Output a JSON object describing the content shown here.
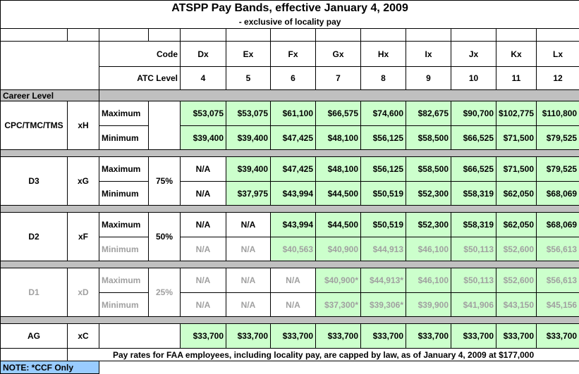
{
  "title": "ATSPP Pay Bands, effective January 4, 2009",
  "subtitle": "- exclusive of locality pay",
  "header": {
    "code_label": "Code",
    "codes": [
      "Dx",
      "Ex",
      "Fx",
      "Gx",
      "Hx",
      "Ix",
      "Jx",
      "Kx",
      "Lx"
    ],
    "level_label": "ATC Level",
    "levels": [
      4,
      5,
      6,
      7,
      8,
      9,
      10,
      11,
      12
    ]
  },
  "section_label": "Career Level",
  "groups": [
    {
      "career": "CPC/TMC/TMS",
      "code": "xH",
      "rows": [
        {
          "label": "Maximum",
          "values": [
            "$53,075",
            "$53,075",
            "$61,100",
            "$66,575",
            "$74,600",
            "$82,675",
            "$90,700",
            "$102,775",
            "$110,800"
          ]
        },
        {
          "label": "Minimum",
          "values": [
            "$39,400",
            "$39,400",
            "$47,425",
            "$48,100",
            "$56,125",
            "$58,500",
            "$66,525",
            "$71,500",
            "$79,525"
          ]
        }
      ]
    },
    {
      "career": "D3",
      "code": "xG",
      "percent": "75%",
      "rows": [
        {
          "label": "Maximum",
          "values": [
            "N/A",
            "$39,400",
            "$47,425",
            "$48,100",
            "$56,125",
            "$58,500",
            "$66,525",
            "$71,500",
            "$79,525"
          ]
        },
        {
          "label": "Minimum",
          "values": [
            "N/A",
            "$37,975",
            "$43,994",
            "$44,500",
            "$50,519",
            "$52,300",
            "$58,319",
            "$62,050",
            "$68,069"
          ]
        }
      ]
    },
    {
      "career": "D2",
      "code": "xF",
      "percent": "50%",
      "rows": [
        {
          "label": "Maximum",
          "values": [
            "N/A",
            "N/A",
            "$43,994",
            "$44,500",
            "$50,519",
            "$52,300",
            "$58,319",
            "$62,050",
            "$68,069"
          ]
        },
        {
          "label": "Minimum",
          "greyed": true,
          "values": [
            "N/A",
            "N/A",
            "$40,563",
            "$40,900",
            "$44,913",
            "$46,100",
            "$50,113",
            "$52,600",
            "$56,613"
          ]
        }
      ]
    },
    {
      "career": "D1",
      "code": "xD",
      "percent": "25%",
      "greyed": true,
      "rows": [
        {
          "label": "Maximum",
          "greyed": true,
          "values": [
            "N/A",
            "N/A",
            "N/A",
            "$40,900*",
            "$44,913*",
            "$46,100",
            "$50,113",
            "$52,600",
            "$56,613"
          ]
        },
        {
          "label": "Minimum",
          "greyed": true,
          "values": [
            "N/A",
            "N/A",
            "N/A",
            "$37,300*",
            "$39,306*",
            "$39,900",
            "$41,906",
            "$43,150",
            "$45,156"
          ]
        }
      ]
    },
    {
      "career": "AG",
      "code": "xC",
      "values": [
        "$33,700",
        "$33,700",
        "$33,700",
        "$33,700",
        "$33,700",
        "$33,700",
        "$33,700",
        "$33,700",
        "$33,700"
      ]
    }
  ],
  "footer": "Pay rates for FAA employees, including locality pay, are capped by law, as of January 4, 2009 at $177,000",
  "note": "NOTE: *CCF Only"
}
